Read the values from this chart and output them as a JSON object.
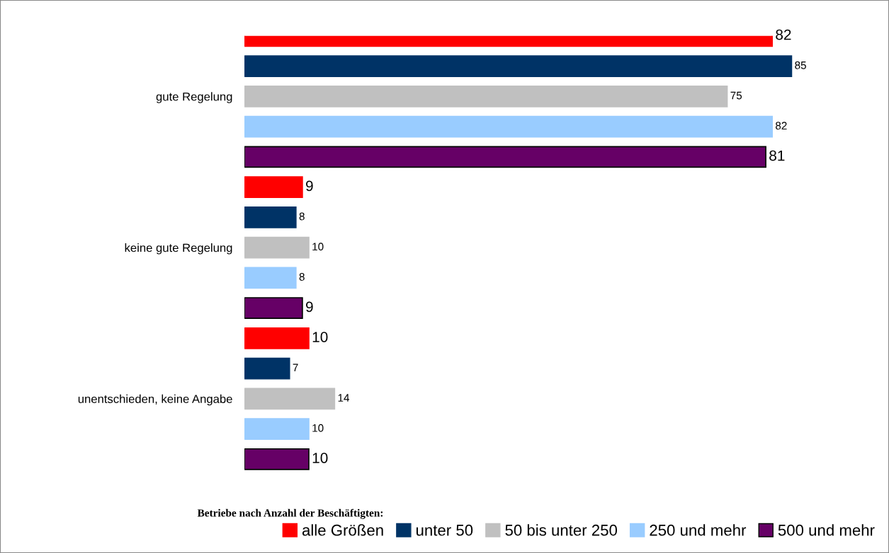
{
  "chart_data": {
    "type": "bar",
    "orientation": "horizontal",
    "categories": [
      "gute Regelung",
      "keine gute Regelung",
      "unentschieden, keine Angabe"
    ],
    "series": [
      {
        "name": "alle Größen",
        "color": "#ff0000",
        "values": [
          82,
          9,
          10
        ]
      },
      {
        "name": "unter 50",
        "color": "#003366",
        "values": [
          85,
          8,
          7
        ]
      },
      {
        "name": "50 bis unter 250",
        "color": "#c0c0c0",
        "values": [
          75,
          10,
          14
        ]
      },
      {
        "name": "250 und mehr",
        "color": "#99ccff",
        "values": [
          82,
          8,
          10
        ]
      },
      {
        "name": "500 und mehr",
        "color": "#660066",
        "values": [
          81,
          9,
          10
        ]
      }
    ],
    "data_labels": true,
    "legend": "bottom",
    "legend_title": "Betriebe nach Anzahl der Beschäftigten:",
    "grid": false
  }
}
